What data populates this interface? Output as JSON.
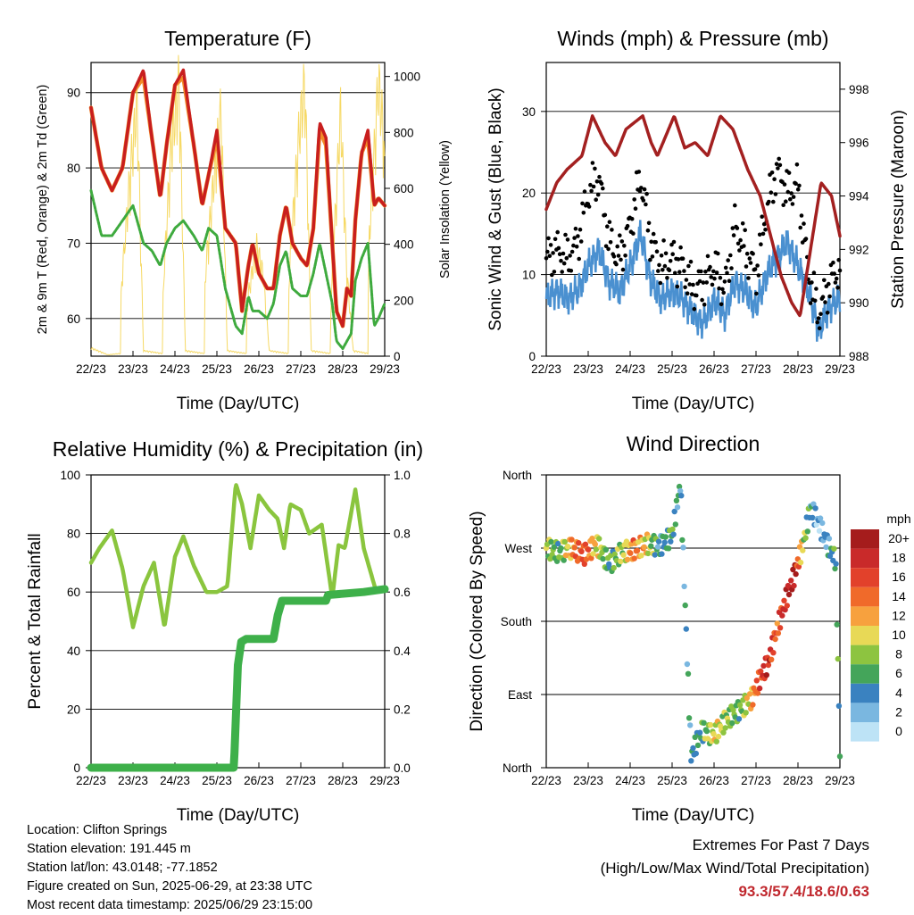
{
  "chart_data": [
    {
      "type": "line",
      "title": "Temperature (F)",
      "xlabel": "Time (Day/UTC)",
      "ylabel": "2m & 9m T (Red, Orange) & 2m Td (Green)",
      "ylabel_right": "Solar Insolation (Yellow)",
      "x_ticks": [
        "22/23",
        "23/23",
        "24/23",
        "25/23",
        "26/23",
        "27/23",
        "28/23",
        "29/23"
      ],
      "ylim": [
        55,
        94
      ],
      "y_ticks": [
        60,
        70,
        80,
        90
      ],
      "ylim_right": [
        0,
        1050
      ],
      "y_ticks_right": [
        0,
        200,
        400,
        600,
        800,
        1000
      ],
      "grid": true,
      "x_days": [
        0,
        0.25,
        0.5,
        0.75,
        1,
        1.25,
        1.45,
        1.65,
        1.8,
        2,
        2.2,
        2.45,
        2.65,
        2.8,
        3,
        3.2,
        3.45,
        3.6,
        3.75,
        3.85,
        4,
        4.2,
        4.35,
        4.5,
        4.65,
        4.8,
        5,
        5.15,
        5.3,
        5.45,
        5.6,
        5.75,
        5.85,
        6,
        6.1,
        6.2,
        6.3,
        6.45,
        6.6,
        6.75,
        6.85,
        7
      ],
      "series": [
        {
          "name": "2m T",
          "color": "#c81e1e",
          "values": [
            88,
            80,
            77,
            80,
            90,
            93,
            84,
            76,
            83,
            91,
            93,
            83,
            75,
            79,
            85,
            72,
            70,
            61,
            67,
            70,
            66,
            64,
            64,
            71,
            75,
            70,
            68,
            67,
            72,
            86,
            84,
            70,
            61,
            59,
            64,
            63,
            73,
            82,
            85,
            75,
            76,
            75
          ]
        },
        {
          "name": "9m T",
          "color": "#f28c28",
          "values": [
            88,
            80,
            77,
            80,
            90,
            92,
            84,
            76,
            83,
            91,
            92,
            83,
            75,
            79,
            84,
            72,
            70,
            61,
            67,
            70,
            66,
            64,
            64,
            71,
            75,
            70,
            68,
            67,
            72,
            85,
            83,
            70,
            61,
            59,
            64,
            63,
            73,
            82,
            84,
            75,
            76,
            75
          ]
        },
        {
          "name": "2m Td",
          "color": "#3eaa3e",
          "values": [
            77,
            71,
            71,
            73,
            75,
            70,
            69,
            67,
            70,
            72,
            73,
            71,
            69,
            72,
            71,
            64,
            59,
            58,
            63,
            61,
            61,
            60,
            62,
            67,
            69,
            64,
            63,
            63,
            66,
            70,
            66,
            62,
            57,
            56,
            57,
            58,
            65,
            68,
            70,
            59,
            60,
            62
          ]
        },
        {
          "name": "Solar Insolation",
          "color": "#f5d24a",
          "x": [
            0,
            0.4,
            0.7,
            0.72,
            0.95,
            1.1,
            1.25,
            1.7,
            1.72,
            1.9,
            2.1,
            2.25,
            2.7,
            2.72,
            2.9,
            3.1,
            3.25,
            3.7,
            3.72,
            3.95,
            4.1,
            4.25,
            4.7,
            4.72,
            4.95,
            5.1,
            5.25,
            5.7,
            5.72,
            5.95,
            6.1,
            6.25,
            6.6,
            6.62,
            6.85,
            6.98,
            7
          ],
          "values": [
            30,
            5,
            10,
            250,
            700,
            920,
            20,
            10,
            250,
            750,
            1000,
            20,
            10,
            300,
            600,
            900,
            20,
            10,
            200,
            400,
            300,
            20,
            10,
            300,
            800,
            1000,
            20,
            10,
            200,
            900,
            300,
            20,
            10,
            400,
            1000,
            800,
            650
          ]
        }
      ]
    },
    {
      "type": "line",
      "title": "Winds (mph) & Pressure (mb)",
      "xlabel": "Time (Day/UTC)",
      "ylabel": "Sonic Wind & Gust (Blue, Black)",
      "ylabel_right": "Station Pressure (Maroon)",
      "x_ticks": [
        "22/23",
        "23/23",
        "24/23",
        "25/23",
        "26/23",
        "27/23",
        "28/23",
        "29/23"
      ],
      "ylim": [
        0,
        36
      ],
      "y_ticks": [
        0,
        10,
        20,
        30
      ],
      "ylim_right": [
        988,
        999
      ],
      "y_ticks_right": [
        988,
        990,
        992,
        994,
        996,
        998
      ],
      "grid": true,
      "x_days": [
        0,
        0.25,
        0.5,
        0.75,
        1,
        1.25,
        1.5,
        1.75,
        2,
        2.25,
        2.5,
        2.75,
        3,
        3.25,
        3.5,
        3.75,
        4,
        4.25,
        4.5,
        4.75,
        5,
        5.25,
        5.5,
        5.75,
        6,
        6.25,
        6.5,
        6.75,
        7
      ],
      "series": [
        {
          "name": "Sonic Wind",
          "color": "#4a90d0",
          "values": [
            7,
            8,
            7,
            8,
            11,
            13,
            9,
            8,
            11,
            15,
            9,
            7,
            8,
            7,
            5,
            4,
            7,
            5,
            9,
            8,
            6,
            10,
            12,
            14,
            11,
            8,
            3,
            6,
            7
          ]
        },
        {
          "name": "Gust",
          "color": "#000000",
          "values": [
            12,
            13,
            12,
            14,
            20,
            22,
            14,
            12,
            16,
            22,
            14,
            11,
            12,
            11,
            8,
            9,
            11,
            8,
            16,
            13,
            10,
            18,
            23,
            20,
            21,
            10,
            5,
            9,
            11
          ]
        },
        {
          "name": "Station Pressure",
          "color": "#a32020",
          "x": [
            0,
            0.25,
            0.5,
            0.85,
            1.1,
            1.4,
            1.65,
            1.9,
            2.3,
            2.5,
            2.65,
            3.05,
            3.3,
            3.55,
            3.85,
            4.15,
            4.45,
            4.8,
            5.1,
            5.35,
            5.6,
            5.85,
            6.05,
            6.3,
            6.55,
            6.8,
            7
          ],
          "values": [
            993.5,
            994.5,
            995,
            995.5,
            997,
            996,
            995.5,
            996.5,
            997,
            996,
            995.5,
            997,
            995.8,
            996,
            995.5,
            997,
            996.5,
            995,
            994,
            992.5,
            991,
            990,
            989.5,
            992,
            994.5,
            994,
            992.5
          ]
        }
      ]
    },
    {
      "type": "line",
      "title": "Relative Humidity (%) & Precipitation (in)",
      "xlabel": "Time (Day/UTC)",
      "ylabel": "Percent & Total Rainfall",
      "x_ticks": [
        "22/23",
        "23/23",
        "24/23",
        "25/23",
        "26/23",
        "27/23",
        "28/23",
        "29/23"
      ],
      "ylim": [
        0,
        100
      ],
      "y_ticks": [
        0,
        20,
        40,
        60,
        80,
        100
      ],
      "ylim_right": [
        0,
        1.0
      ],
      "y_ticks_right": [
        "0.0",
        "0.2",
        "0.4",
        "0.6",
        "0.8",
        "1.0"
      ],
      "grid": true,
      "x_days": [
        0,
        0.2,
        0.5,
        0.75,
        1.0,
        1.25,
        1.5,
        1.75,
        2.0,
        2.2,
        2.45,
        2.75,
        3.0,
        3.25,
        3.45,
        3.6,
        3.8,
        4.0,
        4.25,
        4.45,
        4.6,
        4.75,
        5.0,
        5.2,
        5.5,
        5.75,
        5.9,
        6.05,
        6.3,
        6.5,
        6.8,
        7.0
      ],
      "series": [
        {
          "name": "Relative Humidity",
          "color": "#8ac53e",
          "values": [
            70,
            75,
            81,
            68,
            48,
            62,
            70,
            48,
            72,
            79,
            69,
            60,
            60,
            62,
            97,
            90,
            75,
            93,
            88,
            85,
            75,
            90,
            88,
            80,
            83,
            58,
            76,
            75,
            95,
            75,
            60,
            61
          ]
        },
        {
          "name": "Total Precipitation",
          "color": "#3eb04a",
          "x": [
            0,
            3.4,
            3.42,
            3.46,
            3.5,
            3.58,
            3.7,
            4.0,
            4.35,
            4.45,
            4.55,
            4.8,
            5.6,
            5.65,
            6.5,
            7.0
          ],
          "values": [
            0,
            0,
            0.05,
            0.2,
            0.35,
            0.43,
            0.44,
            0.44,
            0.44,
            0.52,
            0.57,
            0.57,
            0.57,
            0.59,
            0.6,
            0.61
          ]
        }
      ]
    },
    {
      "type": "scatter",
      "title": "Wind Direction",
      "xlabel": "Time (Day/UTC)",
      "ylabel": "Direction (Colored By Speed)",
      "x_ticks": [
        "22/23",
        "23/23",
        "24/23",
        "25/23",
        "26/23",
        "27/23",
        "28/23",
        "29/23"
      ],
      "y_ticks": [
        "North",
        "East",
        "South",
        "West",
        "North"
      ],
      "ylim": [
        0,
        360
      ],
      "grid": true,
      "legend_title": "mph",
      "legend_labels": [
        "20+",
        "18",
        "16",
        "14",
        "12",
        "10",
        "8",
        "6",
        "4",
        "2",
        "0"
      ],
      "legend_colors": [
        "#a51c1c",
        "#c92a2a",
        "#e2412b",
        "#f06a2a",
        "#f7a13e",
        "#e8d956",
        "#8dc440",
        "#44a55a",
        "#3a82c0",
        "#7ab7e0",
        "#bde3f6"
      ],
      "points_x": [
        0,
        0.3,
        0.6,
        0.9,
        1.2,
        1.5,
        1.8,
        2.1,
        2.4,
        2.7,
        3.0,
        3.2,
        3.45,
        3.7,
        4.0,
        4.3,
        4.6,
        4.9,
        5.1,
        5.3,
        5.5,
        5.7,
        5.9,
        6.1,
        6.3,
        6.5,
        6.7,
        6.9,
        7.0
      ],
      "points_dir": [
        270,
        265,
        270,
        262,
        275,
        250,
        265,
        268,
        275,
        272,
        285,
        350,
        15,
        45,
        40,
        60,
        70,
        85,
        110,
        130,
        170,
        205,
        235,
        270,
        320,
        300,
        275,
        255,
        20
      ],
      "points_speed": [
        8,
        6,
        12,
        16,
        10,
        6,
        8,
        14,
        10,
        4,
        6,
        4,
        4,
        6,
        10,
        8,
        6,
        12,
        16,
        18,
        14,
        18,
        20,
        10,
        4,
        2,
        4,
        6,
        6
      ]
    }
  ],
  "info": {
    "location": "Location: Clifton Springs",
    "elevation": "Station elevation: 191.445 m",
    "latlon": "Station lat/lon: 43.0148; -77.1852",
    "created": "Figure created on Sun, 2025-06-29, at 23:38 UTC",
    "recent": "Most recent data timestamp: 2025/06/29 23:15:00"
  },
  "extremes": {
    "title": "Extremes For Past 7 Days",
    "subtitle": "(High/Low/Max Wind/Total Precipitation)",
    "values": "93.3/57.4/18.6/0.63"
  }
}
